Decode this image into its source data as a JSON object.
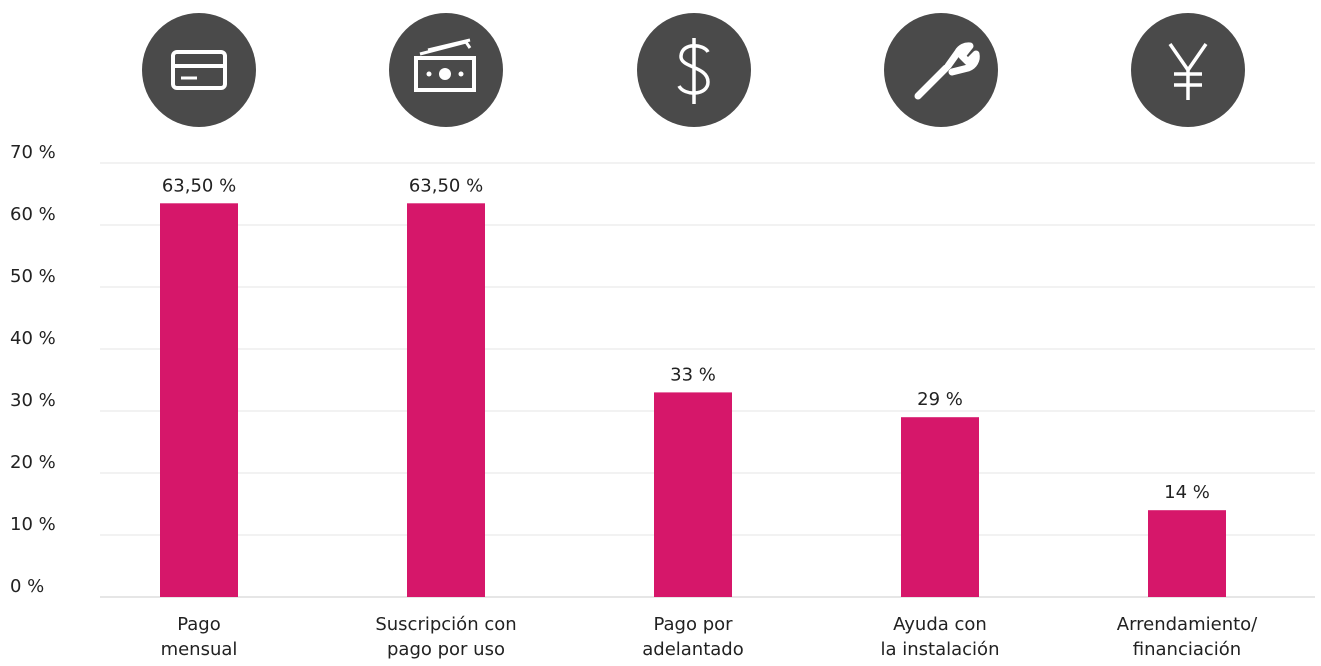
{
  "chart_data": {
    "type": "bar",
    "categories": [
      "Pago\nmensual",
      "Suscripción con\npago por uso",
      "Pago por\nadelantado",
      "Ayuda con\nla instalación",
      "Arrendamiento/\nfinanciación"
    ],
    "values": [
      63.5,
      63.5,
      33,
      29,
      14
    ],
    "value_labels": [
      "63,50 %",
      "63,50 %",
      "33 %",
      "29 %",
      "14 %"
    ],
    "color": "#d6176a",
    "ylim": [
      0,
      70
    ],
    "yticks": [
      {
        "value": 0,
        "label": "0 %"
      },
      {
        "value": 10,
        "label": "10 %"
      },
      {
        "value": 20,
        "label": "20 %"
      },
      {
        "value": 30,
        "label": "30 %"
      },
      {
        "value": 40,
        "label": "40 %"
      },
      {
        "value": 50,
        "label": "50 %"
      },
      {
        "value": 60,
        "label": "60 %"
      },
      {
        "value": 70,
        "label": "70 %"
      }
    ],
    "grid": true
  }
}
